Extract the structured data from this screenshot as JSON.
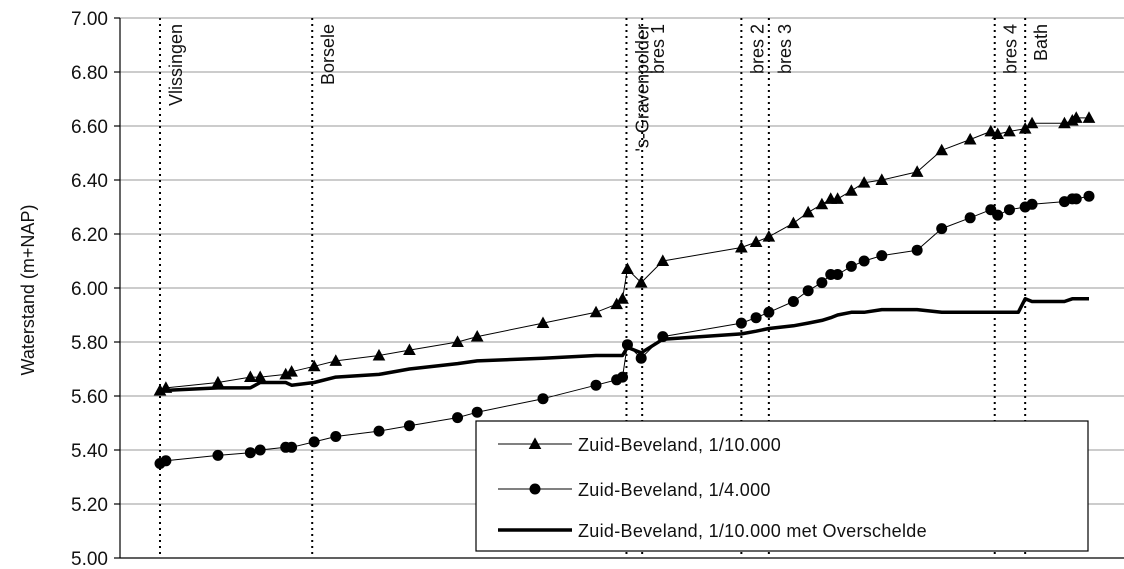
{
  "chart_data": {
    "type": "line",
    "title": "",
    "xlabel": "",
    "ylabel": "Waterstand (m+NAP)",
    "ylim": [
      5.0,
      7.0
    ],
    "y_ticks": [
      "5.00",
      "5.20",
      "5.40",
      "5.60",
      "5.80",
      "6.00",
      "6.20",
      "6.40",
      "6.60",
      "6.80",
      "7.00"
    ],
    "grid": true,
    "legend_position": "bottom-right",
    "locations": [
      {
        "label": "Vlissingen",
        "x": 0
      },
      {
        "label": "Borsele",
        "x": 15.5
      },
      {
        "label": "'s-Gravenpolder",
        "x": 47.5
      },
      {
        "label": "bres 1",
        "x": 49.1
      },
      {
        "label": "bres 2",
        "x": 59.2
      },
      {
        "label": "bres 3",
        "x": 62.0
      },
      {
        "label": "bres 4",
        "x": 85.0
      },
      {
        "label": "Bath",
        "x": 88.1
      }
    ],
    "series": [
      {
        "name": "Zuid-Beveland, 1/10.000",
        "marker": "triangle",
        "line": "thin",
        "points": [
          [
            0,
            5.62
          ],
          [
            0.6,
            5.63
          ],
          [
            5.9,
            5.65
          ],
          [
            9.2,
            5.67
          ],
          [
            10.2,
            5.67
          ],
          [
            12.8,
            5.68
          ],
          [
            13.4,
            5.69
          ],
          [
            15.7,
            5.71
          ],
          [
            17.9,
            5.73
          ],
          [
            22.3,
            5.75
          ],
          [
            25.4,
            5.77
          ],
          [
            30.3,
            5.8
          ],
          [
            32.3,
            5.82
          ],
          [
            39.0,
            5.87
          ],
          [
            44.4,
            5.91
          ],
          [
            46.5,
            5.94
          ],
          [
            47.1,
            5.96
          ],
          [
            47.6,
            6.07
          ],
          [
            49.0,
            6.02
          ],
          [
            51.2,
            6.1
          ],
          [
            59.2,
            6.15
          ],
          [
            60.7,
            6.17
          ],
          [
            62.0,
            6.19
          ],
          [
            64.5,
            6.24
          ],
          [
            66.0,
            6.28
          ],
          [
            67.4,
            6.31
          ],
          [
            68.3,
            6.33
          ],
          [
            69.0,
            6.33
          ],
          [
            70.4,
            6.36
          ],
          [
            71.7,
            6.39
          ],
          [
            73.5,
            6.4
          ],
          [
            77.1,
            6.43
          ],
          [
            79.6,
            6.51
          ],
          [
            82.5,
            6.55
          ],
          [
            84.6,
            6.58
          ],
          [
            85.3,
            6.57
          ],
          [
            86.5,
            6.58
          ],
          [
            88.1,
            6.59
          ],
          [
            88.8,
            6.61
          ],
          [
            92.1,
            6.61
          ],
          [
            92.9,
            6.62
          ],
          [
            93.3,
            6.63
          ],
          [
            94.6,
            6.63
          ]
        ]
      },
      {
        "name": "Zuid-Beveland, 1/4.000",
        "marker": "circle",
        "line": "thin",
        "points": [
          [
            0,
            5.35
          ],
          [
            0.6,
            5.36
          ],
          [
            5.9,
            5.38
          ],
          [
            9.2,
            5.39
          ],
          [
            10.2,
            5.4
          ],
          [
            12.8,
            5.41
          ],
          [
            13.4,
            5.41
          ],
          [
            15.7,
            5.43
          ],
          [
            17.9,
            5.45
          ],
          [
            22.3,
            5.47
          ],
          [
            25.4,
            5.49
          ],
          [
            30.3,
            5.52
          ],
          [
            32.3,
            5.54
          ],
          [
            39.0,
            5.59
          ],
          [
            44.4,
            5.64
          ],
          [
            46.5,
            5.66
          ],
          [
            47.1,
            5.67
          ],
          [
            47.6,
            5.79
          ],
          [
            49.0,
            5.74
          ],
          [
            51.2,
            5.82
          ],
          [
            59.2,
            5.87
          ],
          [
            60.7,
            5.89
          ],
          [
            62.0,
            5.91
          ],
          [
            64.5,
            5.95
          ],
          [
            66.0,
            5.99
          ],
          [
            67.4,
            6.02
          ],
          [
            68.3,
            6.05
          ],
          [
            69.0,
            6.05
          ],
          [
            70.4,
            6.08
          ],
          [
            71.7,
            6.1
          ],
          [
            73.5,
            6.12
          ],
          [
            77.1,
            6.14
          ],
          [
            79.6,
            6.22
          ],
          [
            82.5,
            6.26
          ],
          [
            84.6,
            6.29
          ],
          [
            85.3,
            6.27
          ],
          [
            86.5,
            6.29
          ],
          [
            88.1,
            6.3
          ],
          [
            88.8,
            6.31
          ],
          [
            92.1,
            6.32
          ],
          [
            92.9,
            6.33
          ],
          [
            93.3,
            6.33
          ],
          [
            94.6,
            6.34
          ]
        ]
      },
      {
        "name": "Zuid-Beveland, 1/10.000 met Overschelde",
        "marker": "none",
        "line": "thick",
        "points": [
          [
            0,
            5.62
          ],
          [
            5.9,
            5.63
          ],
          [
            9.2,
            5.63
          ],
          [
            10.2,
            5.65
          ],
          [
            12.8,
            5.65
          ],
          [
            13.4,
            5.64
          ],
          [
            15.7,
            5.65
          ],
          [
            17.9,
            5.67
          ],
          [
            22.3,
            5.68
          ],
          [
            25.4,
            5.7
          ],
          [
            30.3,
            5.72
          ],
          [
            32.3,
            5.73
          ],
          [
            39.0,
            5.74
          ],
          [
            44.4,
            5.75
          ],
          [
            46.5,
            5.75
          ],
          [
            47.1,
            5.75
          ],
          [
            47.6,
            5.78
          ],
          [
            49.0,
            5.76
          ],
          [
            51.2,
            5.81
          ],
          [
            59.2,
            5.83
          ],
          [
            60.7,
            5.84
          ],
          [
            62.0,
            5.85
          ],
          [
            64.5,
            5.86
          ],
          [
            66.0,
            5.87
          ],
          [
            67.4,
            5.88
          ],
          [
            68.3,
            5.89
          ],
          [
            69.0,
            5.9
          ],
          [
            70.4,
            5.91
          ],
          [
            71.7,
            5.91
          ],
          [
            73.5,
            5.92
          ],
          [
            77.1,
            5.92
          ],
          [
            79.6,
            5.91
          ],
          [
            82.5,
            5.91
          ],
          [
            84.6,
            5.91
          ],
          [
            86.5,
            5.91
          ],
          [
            87.4,
            5.91
          ],
          [
            88.1,
            5.96
          ],
          [
            88.8,
            5.95
          ],
          [
            92.1,
            5.95
          ],
          [
            92.9,
            5.96
          ],
          [
            94.6,
            5.96
          ]
        ]
      }
    ]
  }
}
